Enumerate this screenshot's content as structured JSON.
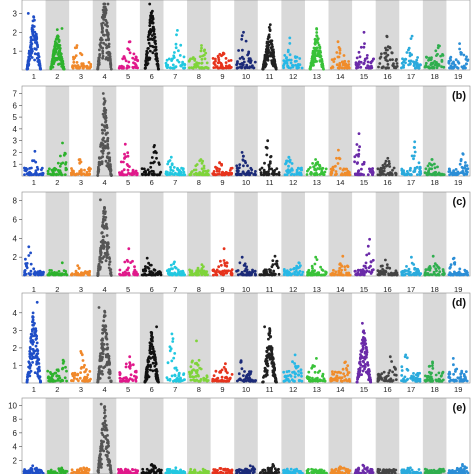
{
  "chart_data": {
    "type": "scatter",
    "chromosomes": [
      "1",
      "2",
      "3",
      "4",
      "5",
      "6",
      "7",
      "8",
      "9",
      "10",
      "11",
      "12",
      "13",
      "14",
      "15",
      "16",
      "17",
      "18",
      "19"
    ],
    "chromosome_colors": [
      "#1f4ec7",
      "#2db22d",
      "#f0882a",
      "#555555",
      "#e0188a",
      "#111111",
      "#22c8e0",
      "#7fd43a",
      "#e6331c",
      "#1b2a78",
      "#202020",
      "#28b8e6",
      "#39c239",
      "#f08c2a",
      "#6a2aa8",
      "#444444",
      "#2aaadc",
      "#2fae4e",
      "#2b8ed6"
    ],
    "shaded_chromosomes": [
      "2",
      "4",
      "6",
      "8",
      "10",
      "12",
      "14",
      "16",
      "18"
    ],
    "grid": false,
    "legend": "none",
    "panels": [
      {
        "label": "",
        "y_ticks": [
          "1",
          "2",
          "3"
        ],
        "ylim": [
          0,
          3.5
        ],
        "peak_values": [
          3.0,
          2.2,
          1.3,
          4.3,
          1.5,
          3.5,
          2.1,
          1.3,
          0.9,
          2.0,
          2.4,
          1.7,
          2.2,
          1.5,
          2.0,
          1.8,
          1.8,
          1.3,
          1.4
        ]
      },
      {
        "label": "(b)",
        "y_ticks": [
          "1",
          "2",
          "3",
          "4",
          "5",
          "6",
          "7"
        ],
        "ylim": [
          0,
          7.3
        ],
        "peak_values": [
          2.1,
          2.8,
          1.4,
          7.0,
          2.7,
          2.6,
          1.6,
          1.4,
          1.1,
          2.0,
          3.0,
          1.6,
          1.4,
          2.2,
          3.6,
          1.5,
          2.9,
          1.4,
          1.9
        ]
      },
      {
        "label": "(c)",
        "y_ticks": [
          "2",
          "4",
          "6",
          "8"
        ],
        "ylim": [
          0,
          8.5
        ],
        "peak_values": [
          3.1,
          1.4,
          1.1,
          8.1,
          2.9,
          1.9,
          1.5,
          1.2,
          2.9,
          2.0,
          2.1,
          1.4,
          2.0,
          2.1,
          3.9,
          1.7,
          2.0,
          2.1,
          1.9
        ]
      },
      {
        "label": "(d)",
        "y_ticks": [
          "1",
          "2",
          "3",
          "4"
        ],
        "ylim": [
          0,
          4.9
        ],
        "peak_values": [
          4.6,
          1.3,
          1.8,
          4.3,
          1.5,
          3.2,
          2.8,
          2.4,
          1.1,
          1.2,
          3.2,
          1.6,
          1.4,
          1.2,
          3.4,
          1.5,
          1.6,
          1.2,
          1.4
        ]
      },
      {
        "label": "(e)",
        "y_ticks": [
          "2",
          "4",
          "6",
          "8",
          "10"
        ],
        "ylim": [
          0,
          10.5
        ],
        "peak_values": [
          1.2,
          0.8,
          0.9,
          10.2,
          0.6,
          1.4,
          0.9,
          0.7,
          0.8,
          1.2,
          1.4,
          0.7,
          0.6,
          1.0,
          1.3,
          0.6,
          0.9,
          0.7,
          1.4
        ]
      }
    ]
  }
}
